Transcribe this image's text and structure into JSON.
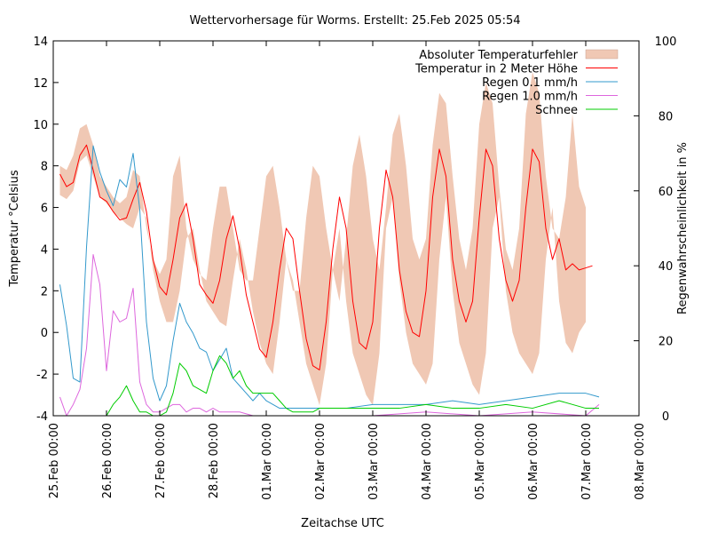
{
  "chart_data": {
    "type": "line",
    "title": "Wettervorhersage für Worms. Erstellt: 25.Feb 2025 05:54",
    "xlabel": "Zeitachse UTC",
    "ylabel": "Temperatur °Celsius",
    "y2label": "Regenwahrscheinlichkeit in %",
    "x_unit": "hours since 25.Feb 00:00",
    "xlim": [
      0,
      264
    ],
    "ylim": [
      -4,
      14
    ],
    "y2lim": [
      0,
      100
    ],
    "grid": false,
    "legend_position": "top-right",
    "x_ticks": [
      {
        "value": 0,
        "label": "25.Feb 00:00"
      },
      {
        "value": 24,
        "label": "26.Feb 00:00"
      },
      {
        "value": 48,
        "label": "27.Feb 00:00"
      },
      {
        "value": 72,
        "label": "28.Feb 00:00"
      },
      {
        "value": 96,
        "label": "01.Mar 00:00"
      },
      {
        "value": 120,
        "label": "02.Mar 00:00"
      },
      {
        "value": 144,
        "label": "03.Mar 00:00"
      },
      {
        "value": 168,
        "label": "04.Mar 00:00"
      },
      {
        "value": 192,
        "label": "05.Mar 00:00"
      },
      {
        "value": 216,
        "label": "06.Mar 00:00"
      },
      {
        "value": 240,
        "label": "07.Mar 00:00"
      },
      {
        "value": 264,
        "label": "08.Mar 00:00"
      }
    ],
    "y_ticks": [
      14,
      12,
      10,
      8,
      6,
      4,
      2,
      0,
      -2,
      -4
    ],
    "y2_ticks": [
      100,
      80,
      60,
      40,
      20,
      0
    ],
    "series": [
      {
        "name": "Absoluter Temperaturfehler",
        "type": "band",
        "axis": "y",
        "color": "#f0c8b4",
        "x": [
          3,
          6,
          9,
          12,
          15,
          18,
          21,
          24,
          27,
          30,
          33,
          36,
          39,
          42,
          45,
          48,
          51,
          54,
          57,
          60,
          63,
          66,
          69,
          72,
          75,
          78,
          81,
          84,
          87,
          90,
          93,
          96,
          99,
          102,
          105,
          108,
          111,
          114,
          117,
          120,
          123,
          126,
          129,
          132,
          135,
          138,
          141,
          144,
          147,
          150,
          153,
          156,
          159,
          162,
          165,
          168,
          171,
          174,
          177,
          180,
          183,
          186,
          189,
          192,
          195,
          198,
          201,
          204,
          207,
          210,
          213,
          216,
          219,
          222,
          225,
          228,
          231,
          234,
          237,
          240
        ],
        "lower": [
          6.6,
          6.4,
          6.8,
          8.2,
          8.5,
          7.5,
          6.5,
          6.2,
          5.8,
          5.5,
          5.2,
          5.0,
          6.0,
          5.5,
          3.0,
          1.5,
          0.5,
          0.5,
          2.0,
          4.5,
          5.0,
          3.0,
          1.5,
          1.0,
          0.5,
          0.3,
          2.5,
          4.5,
          3.0,
          1.0,
          -0.5,
          -1.5,
          -2.0,
          0.5,
          3.5,
          2.5,
          0.5,
          -1.5,
          -2.5,
          -3.5,
          -1.5,
          3.0,
          5.0,
          1.5,
          -1.0,
          -2.0,
          -3.0,
          -3.5,
          -1.0,
          5.0,
          6.5,
          2.5,
          0.0,
          -1.5,
          -2.0,
          -2.5,
          -1.5,
          3.5,
          6.5,
          2.0,
          -0.5,
          -1.5,
          -2.5,
          -3.0,
          -1.0,
          5.0,
          6.5,
          2.0,
          0.0,
          -1.0,
          -1.5,
          -2.0,
          -1.0,
          3.5,
          6.0,
          1.5,
          -0.5,
          -1.0,
          0.0,
          0.5
        ],
        "upper": [
          8.0,
          7.8,
          8.5,
          9.8,
          10.0,
          9.0,
          7.5,
          7.0,
          6.5,
          6.2,
          6.5,
          7.8,
          7.5,
          5.0,
          3.5,
          2.8,
          3.5,
          7.5,
          8.5,
          5.0,
          3.5,
          2.8,
          2.5,
          5.0,
          7.0,
          7.0,
          5.0,
          3.0,
          2.5,
          2.5,
          5.0,
          7.5,
          8.0,
          6.0,
          3.5,
          2.0,
          2.0,
          5.5,
          8.0,
          7.5,
          5.0,
          3.0,
          1.5,
          4.5,
          8.0,
          9.5,
          7.5,
          4.5,
          3.0,
          6.0,
          9.5,
          10.5,
          8.0,
          4.5,
          3.5,
          4.5,
          9.0,
          11.5,
          11.0,
          7.5,
          4.5,
          3.0,
          5.0,
          10.0,
          12.0,
          11.0,
          7.0,
          4.0,
          3.0,
          5.0,
          10.5,
          12.5,
          11.5,
          7.5,
          5.0,
          4.5,
          6.5,
          10.5,
          7.0,
          6.0
        ]
      },
      {
        "name": "Temperatur in 2 Meter Höhe",
        "type": "line",
        "axis": "y",
        "color": "#ff0000",
        "x": [
          3,
          6,
          9,
          12,
          15,
          18,
          21,
          24,
          27,
          30,
          33,
          36,
          39,
          42,
          45,
          48,
          51,
          54,
          57,
          60,
          63,
          66,
          69,
          72,
          75,
          78,
          81,
          84,
          87,
          90,
          93,
          96,
          99,
          102,
          105,
          108,
          111,
          114,
          117,
          120,
          123,
          126,
          129,
          132,
          135,
          138,
          141,
          144,
          147,
          150,
          153,
          156,
          159,
          162,
          165,
          168,
          171,
          174,
          177,
          180,
          183,
          186,
          189,
          192,
          195,
          198,
          201,
          204,
          207,
          210,
          213,
          216,
          219,
          222,
          225,
          228,
          231,
          234,
          237,
          240,
          243
        ],
        "values": [
          7.6,
          7.0,
          7.2,
          8.5,
          9.0,
          7.8,
          6.5,
          6.3,
          5.8,
          5.4,
          5.5,
          6.4,
          7.2,
          5.8,
          3.5,
          2.2,
          1.8,
          3.5,
          5.5,
          6.2,
          4.5,
          2.3,
          1.8,
          1.4,
          2.5,
          4.5,
          5.6,
          4.0,
          1.8,
          0.5,
          -0.8,
          -1.2,
          0.5,
          3.0,
          5.0,
          4.5,
          2.0,
          -0.3,
          -1.6,
          -1.8,
          0.5,
          4.0,
          6.5,
          5.0,
          1.5,
          -0.5,
          -0.8,
          0.5,
          5.0,
          7.8,
          6.5,
          3.0,
          1.0,
          0.0,
          -0.2,
          2.0,
          6.5,
          8.8,
          7.5,
          3.5,
          1.5,
          0.5,
          1.5,
          5.5,
          8.8,
          8.0,
          4.5,
          2.5,
          1.5,
          2.5,
          6.0,
          8.8,
          8.2,
          5.0,
          3.5,
          4.5,
          3.0,
          3.3,
          3.0,
          3.1,
          3.2
        ]
      },
      {
        "name": "Regen 0.1 mm/h",
        "type": "line",
        "axis": "y2",
        "color": "#3399cc",
        "x": [
          3,
          6,
          9,
          12,
          15,
          18,
          21,
          24,
          27,
          30,
          33,
          36,
          39,
          42,
          45,
          48,
          51,
          54,
          57,
          60,
          63,
          66,
          69,
          72,
          75,
          78,
          81,
          84,
          87,
          90,
          93,
          96,
          99,
          102,
          108,
          114,
          120,
          132,
          144,
          156,
          168,
          180,
          192,
          204,
          216,
          228,
          240,
          246
        ],
        "values": [
          35,
          24,
          10,
          9,
          45,
          72,
          65,
          60,
          56,
          63,
          61,
          70,
          55,
          25,
          10,
          4,
          8,
          20,
          30,
          25,
          22,
          18,
          17,
          12,
          15,
          18,
          10,
          8,
          6,
          4,
          6,
          4,
          3,
          2,
          2,
          2,
          2,
          2,
          3,
          3,
          3,
          4,
          3,
          4,
          5,
          6,
          6,
          5
        ]
      },
      {
        "name": "Regen 1.0 mm/h",
        "type": "line",
        "axis": "y2",
        "color": "#dd66dd",
        "x": [
          3,
          6,
          9,
          12,
          15,
          18,
          21,
          24,
          27,
          30,
          33,
          36,
          39,
          42,
          45,
          48,
          51,
          54,
          57,
          60,
          63,
          66,
          69,
          72,
          75,
          78,
          81,
          84,
          90,
          96,
          120,
          144,
          168,
          192,
          216,
          240,
          246
        ],
        "values": [
          5,
          0,
          3,
          7,
          18,
          43,
          35,
          12,
          28,
          25,
          26,
          34,
          9,
          3,
          1,
          1,
          2,
          3,
          3,
          1,
          2,
          2,
          1,
          2,
          1,
          1,
          1,
          1,
          0,
          0,
          0,
          0,
          1,
          0,
          1,
          0,
          3
        ]
      },
      {
        "name": "Schnee",
        "type": "line",
        "axis": "y2",
        "color": "#00cc00",
        "x": [
          3,
          6,
          9,
          12,
          15,
          18,
          21,
          24,
          27,
          30,
          33,
          36,
          39,
          42,
          45,
          48,
          51,
          54,
          57,
          60,
          63,
          66,
          69,
          72,
          75,
          78,
          81,
          84,
          87,
          90,
          93,
          96,
          99,
          102,
          105,
          108,
          111,
          114,
          117,
          120,
          126,
          132,
          144,
          156,
          168,
          180,
          192,
          204,
          216,
          228,
          240,
          246
        ],
        "values": [
          0,
          0,
          0,
          0,
          0,
          0,
          0,
          0,
          3,
          5,
          8,
          4,
          1,
          1,
          0,
          0,
          1,
          6,
          14,
          12,
          8,
          7,
          6,
          12,
          16,
          14,
          10,
          12,
          8,
          6,
          6,
          6,
          6,
          4,
          2,
          1,
          1,
          1,
          1,
          2,
          2,
          2,
          2,
          2,
          3,
          2,
          2,
          3,
          2,
          4,
          2,
          2
        ]
      }
    ]
  }
}
